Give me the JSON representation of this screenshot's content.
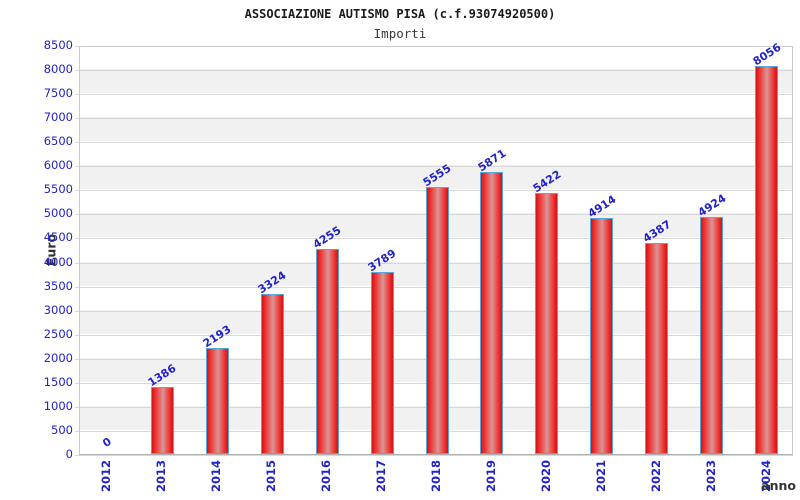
{
  "chart_data": {
    "type": "bar",
    "title": "ASSOCIAZIONE AUTISMO PISA (c.f.93074920500)",
    "subtitle": "Importi",
    "xlabel": "anno",
    "ylabel": "Euro",
    "categories": [
      "2012",
      "2013",
      "2014",
      "2015",
      "2016",
      "2017",
      "2018",
      "2019",
      "2020",
      "2021",
      "2022",
      "2023",
      "2024"
    ],
    "values": [
      0,
      1386,
      2193,
      3324,
      4255,
      3789,
      5555,
      5871,
      5422,
      4914,
      4387,
      4924,
      8056
    ],
    "ylim": [
      0,
      8500
    ],
    "yticks": [
      0,
      500,
      1000,
      1500,
      2000,
      2500,
      3000,
      3500,
      4000,
      4500,
      5000,
      5500,
      6000,
      6500,
      7000,
      7500,
      8000,
      8500
    ],
    "legend": "none",
    "grid": "horizontal-bands-alternating",
    "bar_value_labels_rotated_deg": -33,
    "x_tick_labels_rotated_deg": -90,
    "colors": {
      "axis_label_blue": "#2323c8",
      "bar_edge_red": "#c81616",
      "bar_red": "#f02525",
      "bar_sheen": "#dc9494",
      "bar_border": "#58a6dc",
      "band_gray": "#f1f1f1",
      "gridline": "#d8d8d8",
      "plot_border": "#c9c9c9",
      "axis_line": "#b0b0b0",
      "text_dark": "#333333"
    }
  }
}
